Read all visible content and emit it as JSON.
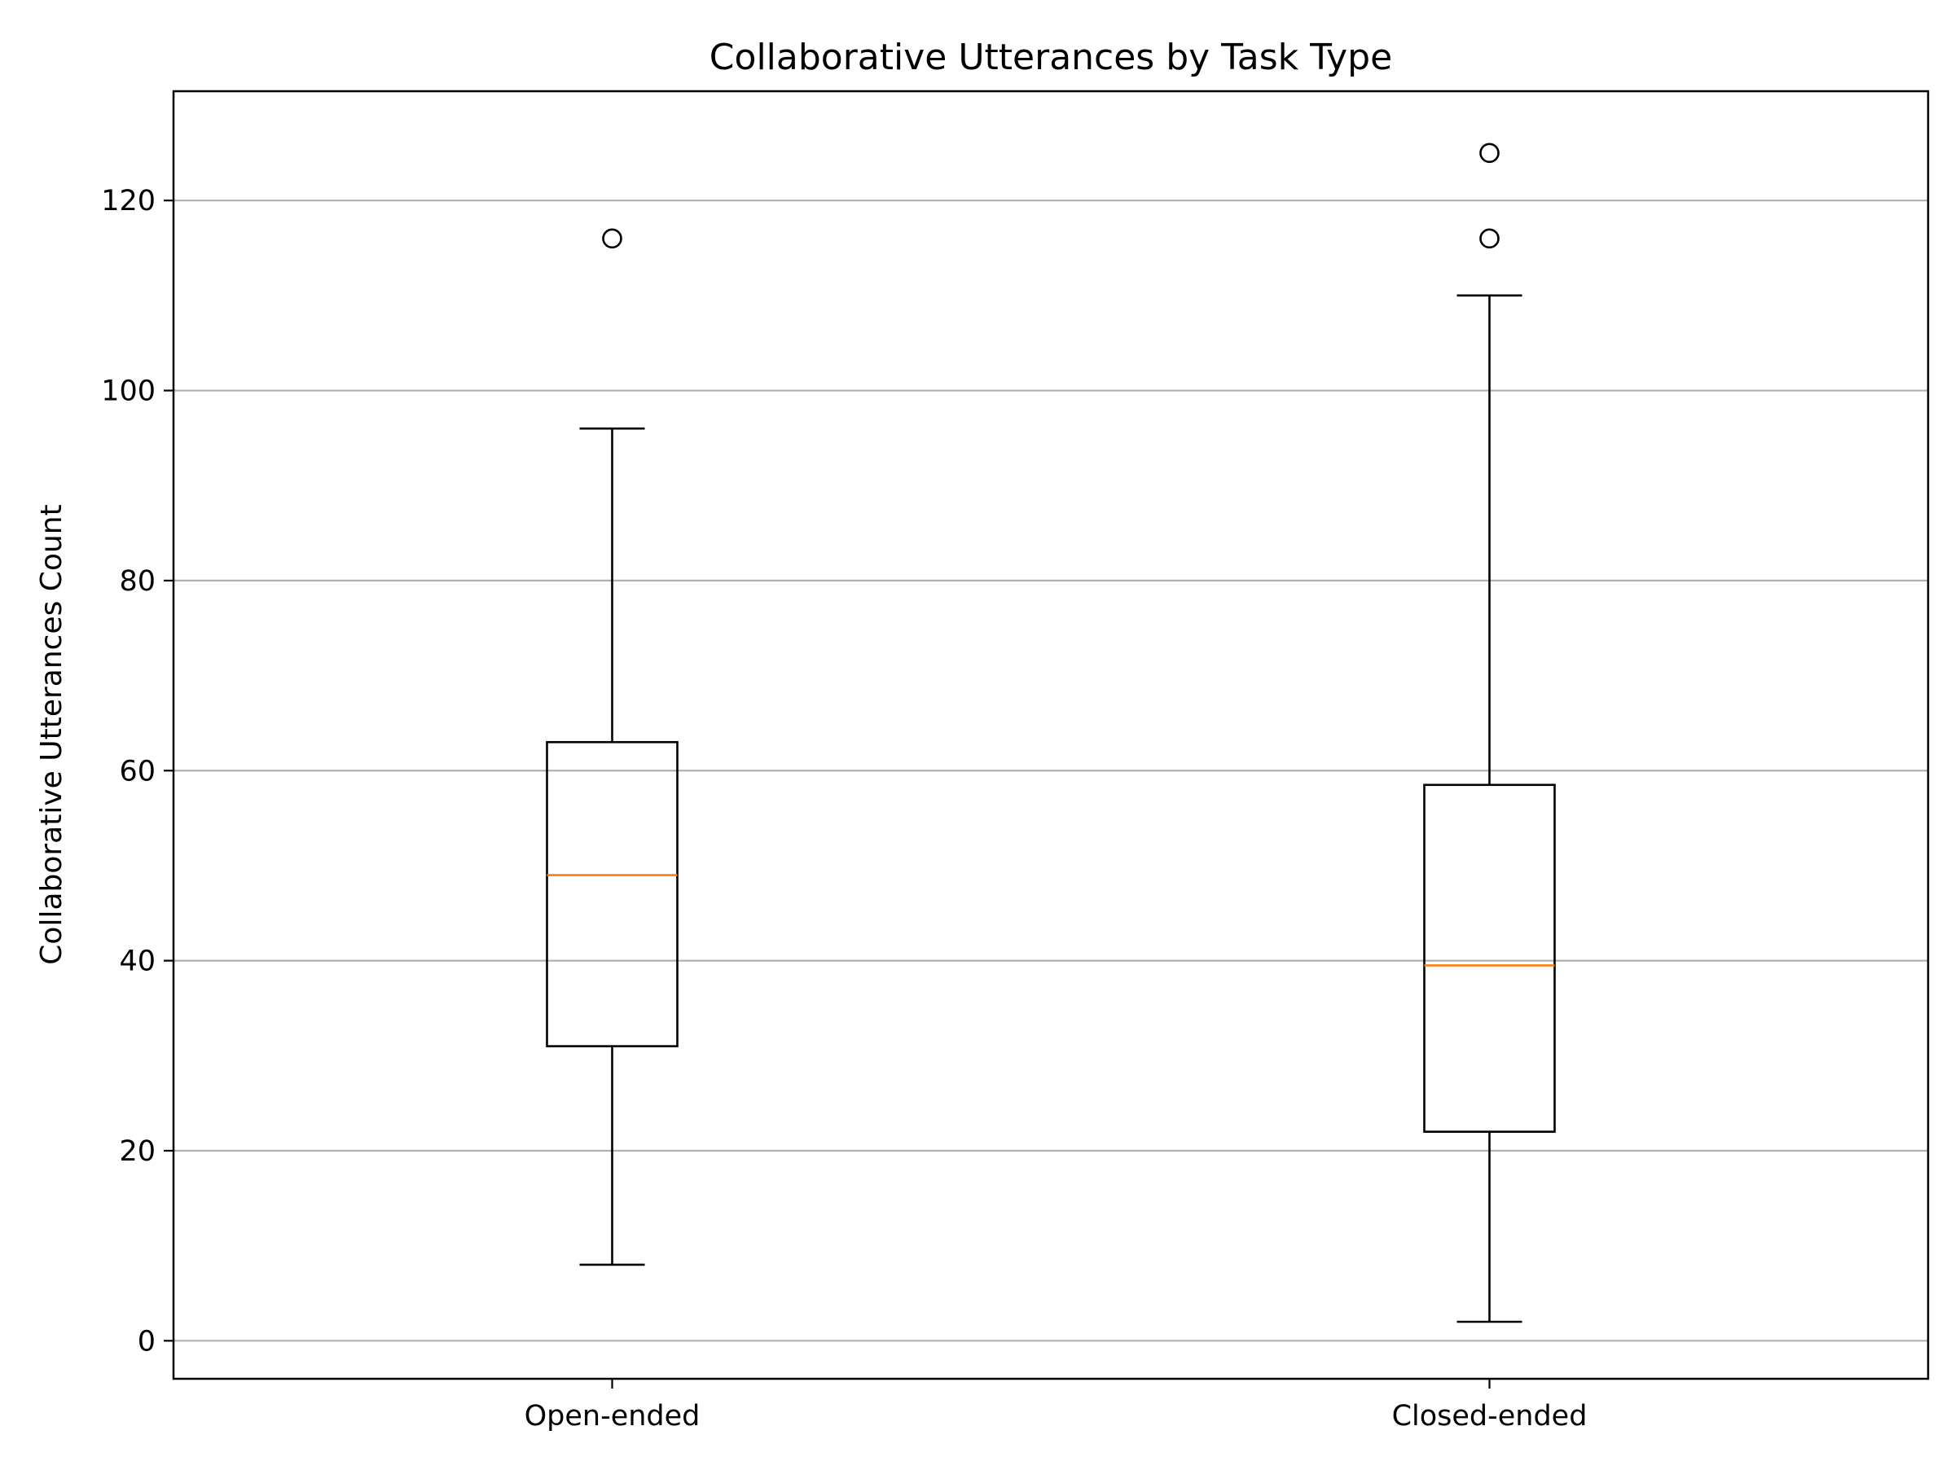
{
  "chart_data": {
    "type": "box",
    "title": "Collaborative Utterances by Task Type",
    "xlabel": "",
    "ylabel": "Collaborative Utterances Count",
    "categories": [
      "Open-ended",
      "Closed-ended"
    ],
    "boxes": [
      {
        "category": "Open-ended",
        "whisker_low": 8,
        "q1": 31,
        "median": 49,
        "q3": 63,
        "whisker_high": 96,
        "outliers": [
          116
        ]
      },
      {
        "category": "Closed-ended",
        "whisker_low": 2,
        "q1": 22,
        "median": 39.5,
        "q3": 58.5,
        "whisker_high": 110,
        "outliers": [
          116,
          125
        ]
      }
    ],
    "ylim": [
      -4,
      131.5
    ],
    "yticks": [
      0,
      20,
      40,
      60,
      80,
      100,
      120
    ],
    "grid": "y-major",
    "legend": "none",
    "colors": {
      "box": "#000000",
      "median": "#ff7f0e",
      "grid": "#b0b0b0",
      "background": "#ffffff"
    }
  }
}
